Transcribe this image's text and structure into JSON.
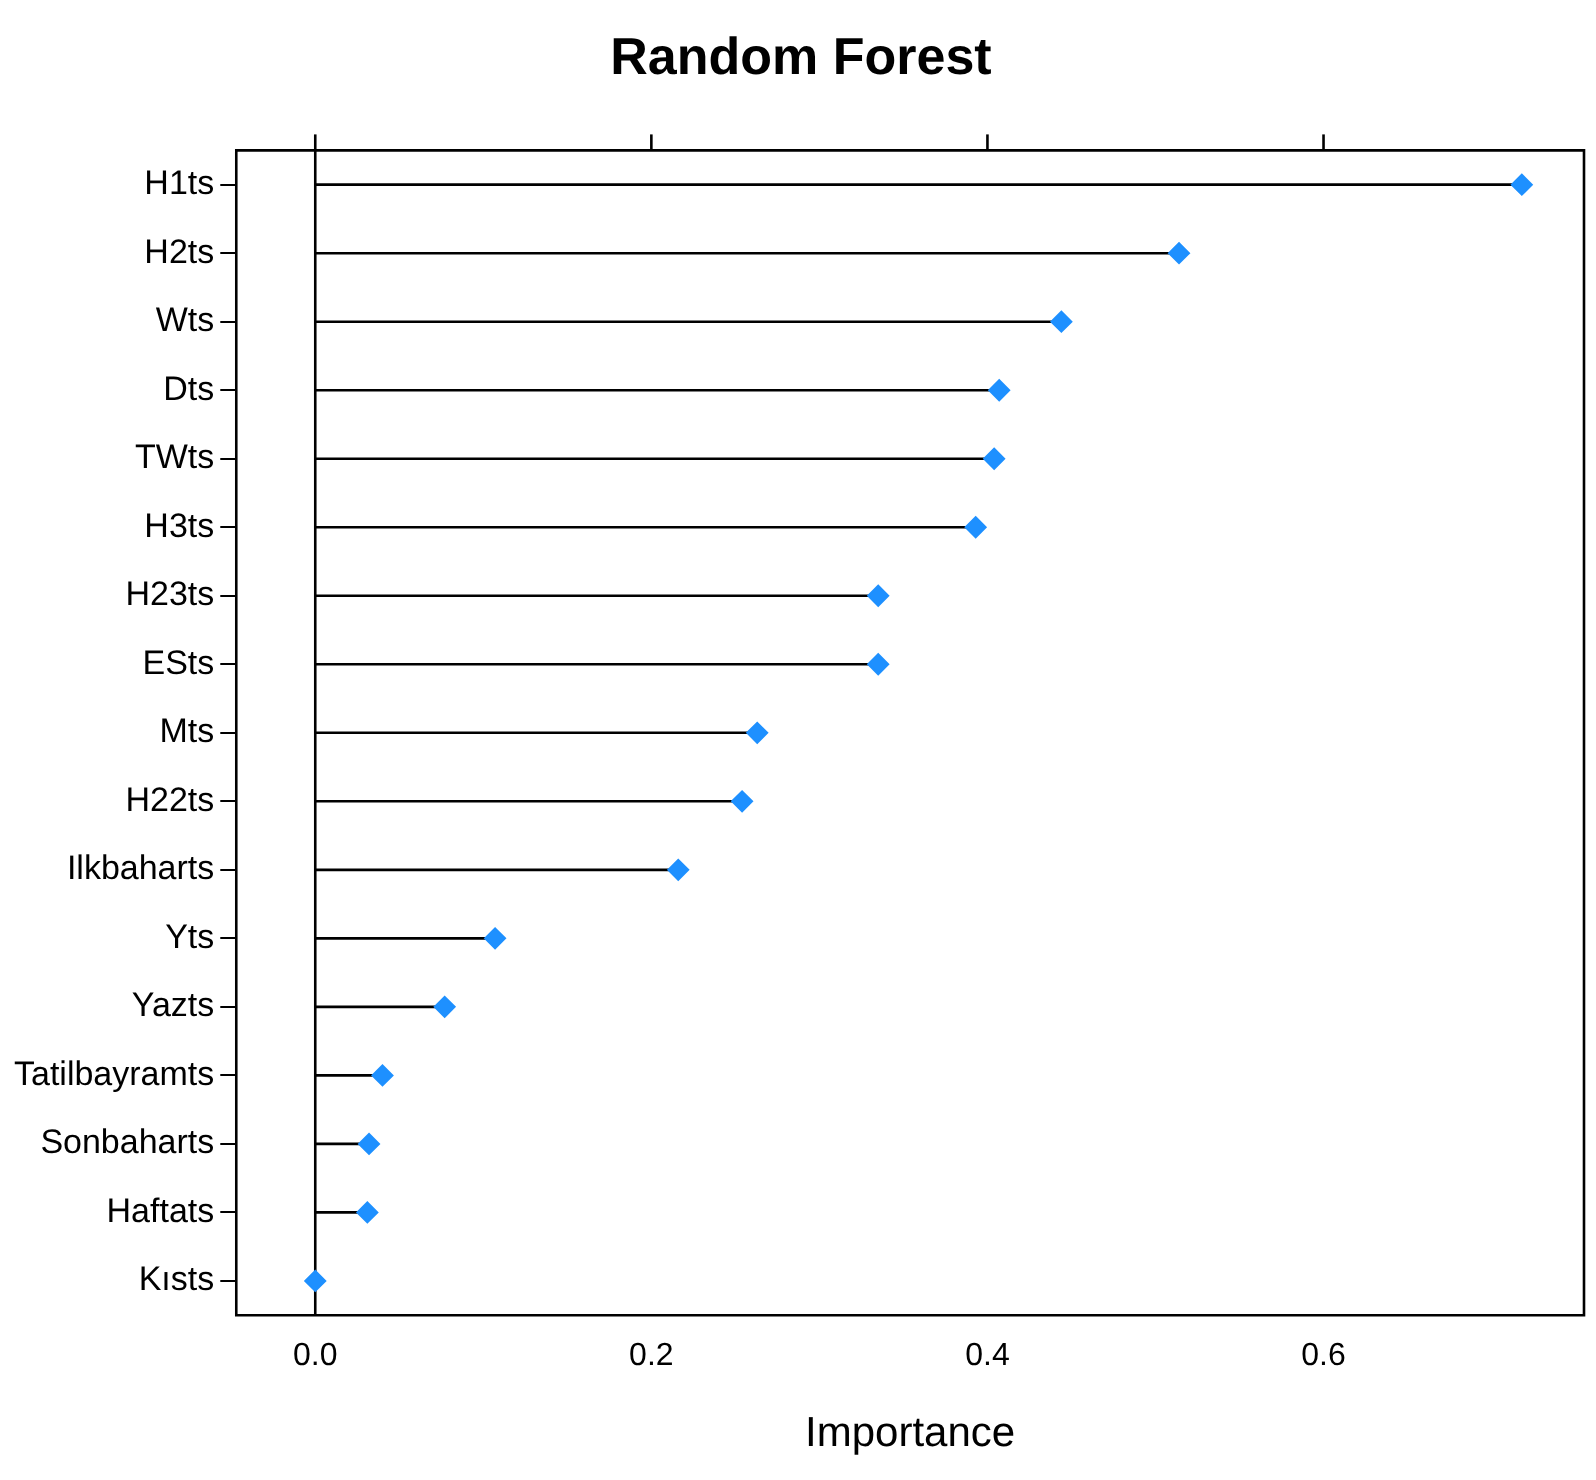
{
  "chart_data": {
    "type": "lollipop",
    "orientation": "horizontal",
    "title": "Random Forest",
    "xlabel": "Importance",
    "categories": [
      "H1ts",
      "H2ts",
      "Wts",
      "Dts",
      "TWts",
      "H3ts",
      "H23ts",
      "ESts",
      "Mts",
      "H22ts",
      "Ilkbaharts",
      "Yts",
      "Yazts",
      "Tatilbayramts",
      "Sonbaharts",
      "Haftats",
      "Kısts"
    ],
    "values": [
      0.718,
      0.514,
      0.444,
      0.407,
      0.404,
      0.393,
      0.335,
      0.335,
      0.263,
      0.254,
      0.216,
      0.107,
      0.077,
      0.04,
      0.032,
      0.031,
      0.0
    ],
    "color": "#1e90ff",
    "marker": "diamond",
    "legend": false,
    "xlim": [
      -0.047,
      0.755
    ],
    "xticks": [
      {
        "value": 0,
        "label": "0.0"
      },
      {
        "value": 0.2,
        "label": "0.2"
      },
      {
        "value": 0.4,
        "label": "0.4"
      },
      {
        "value": 0.6,
        "label": "0.6"
      }
    ]
  }
}
